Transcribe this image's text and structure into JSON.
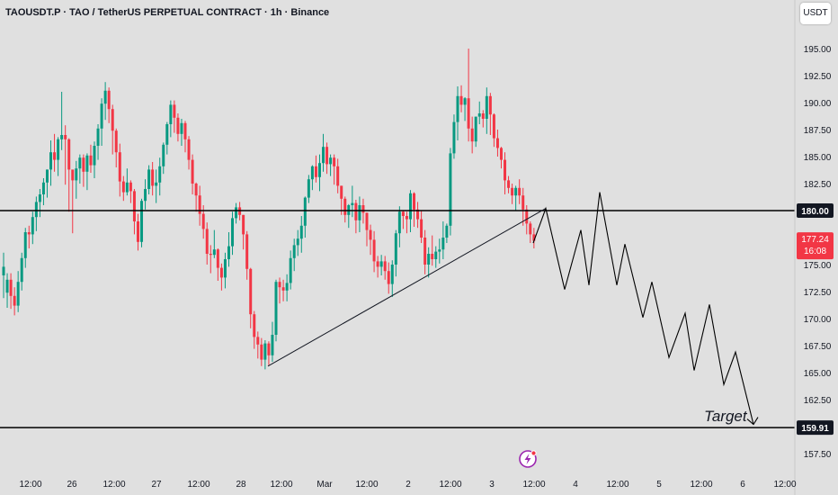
{
  "header": {
    "title": "TAOUSDT.P · TAO / TetherUS PERPETUAL CONTRACT · 1h · Binance",
    "currency_button": "USDT"
  },
  "chart_data": {
    "type": "candlestick",
    "y_ticks": [
      "195.00",
      "192.50",
      "190.00",
      "187.50",
      "185.00",
      "182.50",
      "177.50",
      "175.00",
      "172.50",
      "170.00",
      "167.50",
      "165.00",
      "162.50",
      "157.50"
    ],
    "x_ticks": [
      "12:00",
      "26",
      "12:00",
      "27",
      "12:00",
      "28",
      "12:00",
      "Mar",
      "12:00",
      "2",
      "12:00",
      "3",
      "12:00",
      "4",
      "12:00",
      "5",
      "12:00",
      "6",
      "12:00"
    ],
    "ylim": [
      156.5,
      197.2
    ],
    "levels": [
      {
        "value": 180.0,
        "label": "180.00"
      },
      {
        "value": 159.91,
        "label": "159.91"
      }
    ],
    "current_price": {
      "value": 177.24,
      "label": "177.24",
      "countdown": "16:08",
      "color": "#f23645"
    },
    "annotation_text": "Target",
    "colors": {
      "up": "#089981",
      "down": "#f23645",
      "line": "#000000",
      "trendline": "#131722"
    },
    "candles": [
      [
        174.0,
        174.8,
        172.5,
        176.1,
        171.9
      ],
      [
        172.4,
        173.6,
        171.8,
        174.2,
        171.0
      ],
      [
        173.6,
        172.1,
        171.5,
        174.2,
        170.9
      ],
      [
        172.1,
        171.2,
        171.0,
        172.9,
        170.3
      ],
      [
        171.2,
        173.4,
        171.0,
        174.4,
        170.6
      ],
      [
        173.4,
        175.6,
        172.8,
        176.1,
        172.6
      ],
      [
        175.6,
        178.0,
        175.1,
        178.4,
        174.7
      ],
      [
        178.0,
        177.8,
        177.0,
        178.6,
        176.5
      ],
      [
        177.8,
        179.4,
        177.3,
        179.9,
        176.9
      ],
      [
        179.4,
        180.8,
        179.0,
        181.3,
        178.1
      ],
      [
        180.8,
        181.5,
        180.4,
        182.0,
        179.4
      ],
      [
        181.5,
        182.6,
        181.2,
        183.0,
        180.5
      ],
      [
        182.6,
        183.8,
        181.7,
        183.8,
        181.2
      ],
      [
        183.8,
        185.4,
        182.7,
        186.5,
        182.3
      ],
      [
        185.4,
        184.7,
        184.0,
        187.1,
        183.6
      ],
      [
        184.7,
        186.6,
        184.3,
        186.8,
        183.2
      ],
      [
        186.6,
        187.0,
        185.9,
        191.0,
        185.6
      ],
      [
        187.0,
        186.6,
        184.3,
        187.9,
        182.4
      ],
      [
        186.6,
        183.8,
        183.4,
        186.7,
        179.9
      ],
      [
        183.8,
        182.8,
        181.0,
        183.4,
        177.9
      ],
      [
        182.8,
        183.9,
        182.3,
        184.6,
        181.1
      ],
      [
        183.9,
        184.9,
        183.5,
        185.2,
        182.5
      ],
      [
        184.9,
        183.6,
        183.0,
        185.2,
        182.2
      ],
      [
        183.6,
        185.1,
        182.4,
        185.3,
        181.9
      ],
      [
        185.1,
        184.2,
        183.5,
        186.1,
        183.5
      ],
      [
        184.2,
        186.0,
        183.9,
        186.4,
        183.0
      ],
      [
        186.0,
        187.6,
        185.3,
        188.0,
        184.7
      ],
      [
        187.6,
        189.9,
        186.8,
        190.4,
        186.0
      ],
      [
        189.9,
        191.1,
        189.1,
        191.9,
        188.4
      ],
      [
        191.1,
        189.4,
        188.5,
        191.4,
        188.1
      ],
      [
        189.4,
        187.4,
        186.0,
        189.8,
        185.2
      ],
      [
        187.4,
        185.4,
        184.1,
        187.6,
        184.0
      ],
      [
        185.4,
        182.7,
        182.0,
        186.2,
        181.3
      ],
      [
        182.7,
        181.7,
        181.2,
        183.2,
        180.9
      ],
      [
        181.7,
        182.6,
        181.4,
        183.9,
        181.4
      ],
      [
        182.6,
        181.8,
        180.9,
        182.8,
        180.7
      ],
      [
        181.8,
        179.0,
        178.1,
        182.0,
        177.8
      ],
      [
        179.0,
        177.1,
        176.3,
        179.7,
        176.3
      ],
      [
        177.1,
        180.9,
        176.8,
        181.1,
        176.6
      ],
      [
        180.9,
        182.0,
        180.7,
        182.9,
        180.1
      ],
      [
        182.0,
        183.8,
        181.8,
        184.2,
        181.5
      ],
      [
        183.8,
        182.3,
        181.6,
        184.5,
        181.4
      ],
      [
        182.3,
        182.6,
        181.8,
        183.8,
        180.7
      ],
      [
        182.6,
        184.1,
        182.1,
        184.9,
        181.4
      ],
      [
        184.1,
        186.1,
        183.6,
        186.3,
        183.4
      ],
      [
        186.1,
        188.0,
        185.6,
        188.2,
        185.2
      ],
      [
        188.0,
        189.8,
        187.2,
        190.2,
        186.8
      ],
      [
        189.8,
        188.6,
        187.7,
        190.2,
        187.2
      ],
      [
        188.6,
        187.1,
        186.5,
        189.0,
        186.4
      ],
      [
        187.1,
        188.1,
        186.4,
        188.5,
        186.0
      ],
      [
        188.1,
        186.6,
        185.8,
        188.3,
        185.4
      ],
      [
        186.6,
        184.7,
        184.2,
        186.9,
        183.8
      ],
      [
        184.7,
        182.5,
        181.5,
        185.2,
        181.5
      ],
      [
        182.5,
        181.4,
        180.7,
        182.6,
        179.9
      ],
      [
        181.4,
        179.7,
        179.2,
        182.3,
        178.6
      ],
      [
        179.7,
        178.3,
        177.5,
        180.5,
        177.4
      ],
      [
        178.3,
        176.0,
        175.5,
        178.9,
        175.0
      ],
      [
        176.0,
        175.9,
        175.0,
        176.8,
        174.2
      ],
      [
        175.9,
        176.4,
        175.7,
        178.2,
        175.6
      ],
      [
        176.4,
        174.7,
        174.0,
        176.5,
        173.5
      ],
      [
        174.7,
        173.8,
        173.0,
        175.1,
        172.6
      ],
      [
        173.8,
        175.5,
        173.2,
        176.1,
        172.8
      ],
      [
        175.5,
        176.7,
        175.3,
        178.0,
        174.8
      ],
      [
        176.7,
        179.3,
        176.0,
        179.9,
        175.9
      ],
      [
        179.3,
        180.3,
        178.9,
        180.7,
        178.8
      ],
      [
        180.3,
        179.6,
        179.1,
        180.8,
        179.1
      ],
      [
        179.6,
        177.8,
        177.2,
        179.6,
        176.4
      ],
      [
        177.8,
        174.6,
        173.6,
        178.1,
        173.6
      ],
      [
        174.6,
        170.4,
        169.4,
        174.7,
        169.1
      ],
      [
        170.4,
        168.3,
        167.7,
        170.7,
        167.2
      ],
      [
        168.3,
        167.6,
        166.9,
        168.8,
        166.3
      ],
      [
        167.6,
        166.2,
        165.8,
        168.2,
        165.6
      ],
      [
        166.2,
        167.7,
        166.0,
        168.0,
        165.3
      ],
      [
        167.7,
        166.6,
        166.3,
        167.9,
        165.7
      ],
      [
        166.6,
        168.5,
        166.3,
        169.7,
        166.0
      ],
      [
        168.5,
        173.4,
        168.3,
        173.6,
        167.9
      ],
      [
        173.4,
        172.9,
        172.3,
        173.8,
        171.4
      ],
      [
        172.9,
        172.6,
        172.3,
        173.6,
        171.6
      ],
      [
        172.6,
        173.3,
        172.0,
        174.1,
        171.6
      ],
      [
        173.3,
        175.6,
        173.1,
        176.3,
        172.7
      ],
      [
        175.6,
        176.8,
        174.9,
        177.4,
        174.4
      ],
      [
        176.8,
        177.4,
        176.6,
        178.2,
        175.8
      ],
      [
        177.4,
        178.6,
        176.6,
        179.5,
        176.1
      ],
      [
        178.6,
        181.2,
        177.8,
        181.3,
        177.5
      ],
      [
        181.2,
        182.9,
        180.7,
        183.3,
        180.7
      ],
      [
        182.9,
        184.1,
        182.2,
        184.2,
        181.9
      ],
      [
        184.1,
        183.1,
        182.8,
        185.1,
        182.6
      ],
      [
        183.1,
        184.4,
        182.6,
        185.2,
        181.8
      ],
      [
        184.4,
        185.9,
        184.2,
        187.1,
        183.6
      ],
      [
        185.9,
        184.3,
        183.4,
        186.3,
        183.4
      ],
      [
        184.3,
        184.9,
        183.7,
        185.2,
        183.2
      ],
      [
        184.9,
        184.1,
        183.2,
        185.2,
        182.4
      ],
      [
        184.1,
        182.3,
        181.6,
        184.8,
        181.6
      ],
      [
        182.3,
        181.1,
        180.2,
        182.3,
        179.6
      ],
      [
        181.1,
        179.6,
        179.3,
        181.3,
        178.9
      ],
      [
        179.6,
        180.5,
        179.5,
        180.6,
        178.4
      ],
      [
        180.5,
        180.7,
        179.8,
        182.3,
        179.4
      ],
      [
        180.7,
        179.1,
        178.2,
        181.0,
        177.9
      ],
      [
        179.1,
        180.5,
        178.3,
        181.3,
        178.0
      ],
      [
        180.5,
        179.8,
        179.6,
        181.1,
        178.8
      ],
      [
        179.8,
        178.2,
        177.8,
        179.8,
        176.7
      ],
      [
        178.2,
        177.3,
        176.8,
        178.7,
        175.9
      ],
      [
        177.3,
        175.3,
        174.8,
        178.1,
        174.3
      ],
      [
        175.3,
        174.8,
        173.9,
        175.8,
        173.8
      ],
      [
        174.8,
        175.3,
        174.7,
        175.9,
        174.0
      ],
      [
        175.3,
        174.4,
        174.1,
        175.8,
        173.6
      ],
      [
        174.4,
        173.2,
        172.7,
        175.2,
        172.3
      ],
      [
        173.2,
        175.0,
        172.4,
        175.4,
        172.0
      ],
      [
        175.0,
        177.9,
        174.2,
        178.2,
        173.9
      ],
      [
        177.9,
        179.9,
        177.3,
        180.4,
        176.6
      ],
      [
        179.9,
        179.5,
        178.5,
        180.0,
        178.3
      ],
      [
        179.5,
        179.2,
        178.8,
        179.9,
        177.9
      ],
      [
        179.2,
        181.6,
        178.8,
        181.9,
        178.0
      ],
      [
        181.6,
        180.1,
        179.2,
        181.7,
        178.5
      ],
      [
        180.1,
        179.2,
        179.0,
        180.8,
        178.4
      ],
      [
        179.2,
        177.5,
        177.4,
        180.0,
        177.0
      ],
      [
        177.5,
        175.0,
        174.4,
        178.2,
        174.1
      ],
      [
        175.0,
        176.0,
        174.9,
        176.6,
        173.8
      ],
      [
        176.0,
        175.5,
        175.1,
        177.7,
        174.9
      ],
      [
        175.5,
        176.2,
        175.0,
        176.7,
        174.7
      ],
      [
        176.2,
        176.4,
        175.9,
        177.4,
        175.1
      ],
      [
        176.4,
        177.5,
        176.1,
        179.0,
        175.5
      ],
      [
        177.5,
        178.6,
        177.4,
        178.8,
        177.0
      ],
      [
        178.6,
        185.3,
        178.2,
        185.8,
        177.7
      ],
      [
        185.3,
        188.2,
        185.0,
        188.9,
        184.8
      ],
      [
        188.2,
        190.6,
        187.8,
        191.5,
        186.5
      ],
      [
        190.6,
        189.8,
        189.5,
        191.6,
        189.1
      ],
      [
        189.8,
        190.4,
        189.1,
        190.5,
        188.3
      ],
      [
        190.4,
        187.6,
        187.0,
        195.0,
        186.4
      ],
      [
        187.6,
        186.4,
        186.2,
        188.7,
        185.3
      ],
      [
        186.4,
        188.7,
        186.0,
        188.7,
        185.9
      ],
      [
        188.7,
        189.0,
        188.2,
        190.1,
        188.0
      ],
      [
        189.0,
        188.5,
        187.7,
        189.3,
        187.7
      ],
      [
        188.5,
        190.6,
        188.2,
        191.4,
        187.1
      ],
      [
        190.6,
        188.9,
        188.0,
        190.9,
        187.0
      ],
      [
        188.9,
        186.7,
        186.2,
        189.0,
        185.9
      ],
      [
        186.7,
        185.8,
        185.1,
        187.5,
        185.0
      ],
      [
        185.8,
        184.7,
        184.4,
        185.9,
        183.9
      ],
      [
        184.7,
        182.8,
        182.1,
        185.4,
        181.5
      ],
      [
        182.8,
        182.1,
        181.9,
        183.2,
        181.6
      ],
      [
        182.1,
        181.4,
        180.8,
        182.5,
        180.6
      ],
      [
        181.4,
        182.1,
        180.7,
        182.3,
        180.0
      ],
      [
        182.1,
        181.4,
        181.1,
        182.9,
        180.6
      ],
      [
        181.4,
        180.1,
        179.2,
        182.1,
        178.6
      ],
      [
        180.1,
        178.8,
        177.9,
        180.5,
        177.8
      ],
      [
        178.8,
        177.8,
        177.4,
        179.0,
        177.0
      ],
      [
        177.8,
        177.2,
        177.0,
        178.4,
        176.5
      ]
    ]
  }
}
